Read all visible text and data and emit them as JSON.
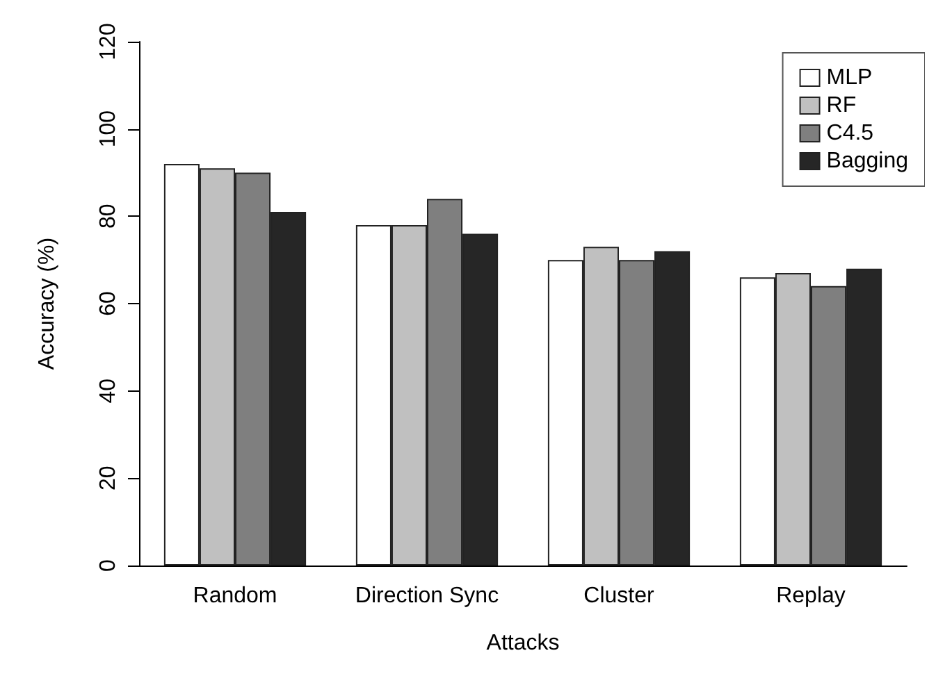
{
  "chart_data": {
    "type": "bar",
    "xlabel": "Attacks",
    "ylabel": "Accuracy (%)",
    "categories": [
      "Random",
      "Direction Sync",
      "Cluster",
      "Replay"
    ],
    "series": [
      {
        "name": "MLP",
        "color": "#ffffff",
        "values": [
          92,
          78,
          70,
          66
        ]
      },
      {
        "name": "RF",
        "color": "#c0c0c0",
        "values": [
          91,
          78,
          73,
          67
        ]
      },
      {
        "name": "C4.5",
        "color": "#7f7f7f",
        "values": [
          90,
          84,
          70,
          64
        ]
      },
      {
        "name": "Bagging",
        "color": "#262626",
        "values": [
          81,
          76,
          72,
          68
        ]
      }
    ],
    "ylim": [
      0,
      120
    ],
    "yticks": [
      0,
      20,
      40,
      60,
      80,
      100,
      120
    ],
    "grid": false,
    "legend": "top right"
  }
}
